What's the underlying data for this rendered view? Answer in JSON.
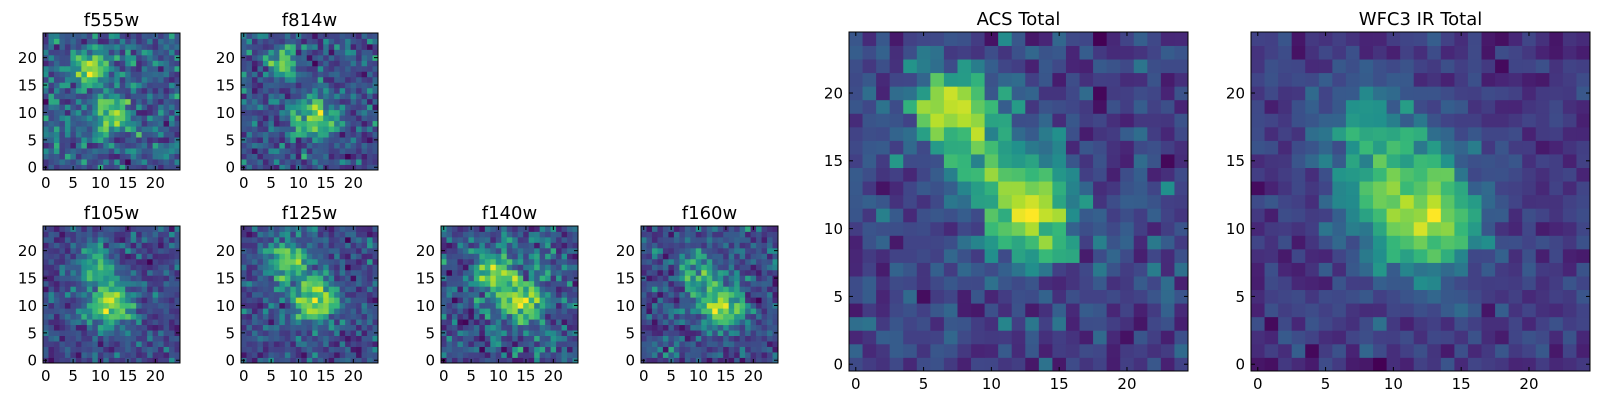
{
  "chart_data": [
    {
      "type": "heatmap",
      "title": "f555w",
      "size": 25,
      "xlim": [
        -0.5,
        24.5
      ],
      "ylim": [
        -0.5,
        24.5
      ],
      "xticks": [
        0,
        5,
        10,
        15,
        20
      ],
      "yticks": [
        0,
        5,
        10,
        15,
        20
      ],
      "xtick_labels": [
        "0",
        "5",
        "10",
        "15",
        "20"
      ],
      "ytick_labels": [
        "0",
        "5",
        "10",
        "15",
        "20"
      ],
      "sources": [
        {
          "x": 8,
          "y": 18,
          "amp": 0.6,
          "sigma": 2.2
        },
        {
          "x": 12,
          "y": 10,
          "amp": 0.45,
          "sigma": 2.4
        }
      ],
      "noise": 0.28,
      "seed": 11
    },
    {
      "type": "heatmap",
      "title": "f814w",
      "size": 25,
      "xlim": [
        -0.5,
        24.5
      ],
      "ylim": [
        -0.5,
        24.5
      ],
      "xticks": [
        0,
        5,
        10,
        15,
        20
      ],
      "yticks": [
        0,
        5,
        10,
        15,
        20
      ],
      "xtick_labels": [
        "0",
        "5",
        "10",
        "15",
        "20"
      ],
      "ytick_labels": [
        "0",
        "5",
        "10",
        "15",
        "20"
      ],
      "sources": [
        {
          "x": 7,
          "y": 19,
          "amp": 0.45,
          "sigma": 2.0
        },
        {
          "x": 13,
          "y": 9,
          "amp": 0.6,
          "sigma": 2.5
        }
      ],
      "noise": 0.28,
      "seed": 23
    },
    {
      "type": "heatmap",
      "title": "f105w",
      "size": 25,
      "xlim": [
        -0.5,
        24.5
      ],
      "ylim": [
        -0.5,
        24.5
      ],
      "xticks": [
        0,
        5,
        10,
        15,
        20
      ],
      "yticks": [
        0,
        5,
        10,
        15,
        20
      ],
      "xtick_labels": [
        "0",
        "5",
        "10",
        "15",
        "20"
      ],
      "ytick_labels": [
        "0",
        "5",
        "10",
        "15",
        "20"
      ],
      "sources": [
        {
          "x": 9,
          "y": 17,
          "amp": 0.45,
          "sigma": 2.6
        },
        {
          "x": 12,
          "y": 10,
          "amp": 0.65,
          "sigma": 2.8
        }
      ],
      "noise": 0.24,
      "seed": 37
    },
    {
      "type": "heatmap",
      "title": "f125w",
      "size": 25,
      "xlim": [
        -0.5,
        24.5
      ],
      "ylim": [
        -0.5,
        24.5
      ],
      "xticks": [
        0,
        5,
        10,
        15,
        20
      ],
      "yticks": [
        0,
        5,
        10,
        15,
        20
      ],
      "xtick_labels": [
        "0",
        "5",
        "10",
        "15",
        "20"
      ],
      "ytick_labels": [
        "0",
        "5",
        "10",
        "15",
        "20"
      ],
      "sources": [
        {
          "x": 8,
          "y": 18,
          "amp": 0.45,
          "sigma": 2.6
        },
        {
          "x": 13,
          "y": 11,
          "amp": 0.6,
          "sigma": 2.8
        }
      ],
      "noise": 0.22,
      "seed": 41
    },
    {
      "type": "heatmap",
      "title": "f140w",
      "size": 25,
      "xlim": [
        -0.5,
        24.5
      ],
      "ylim": [
        -0.5,
        24.5
      ],
      "xticks": [
        0,
        5,
        10,
        15,
        20
      ],
      "yticks": [
        0,
        5,
        10,
        15,
        20
      ],
      "xtick_labels": [
        "0",
        "5",
        "10",
        "15",
        "20"
      ],
      "ytick_labels": [
        "0",
        "5",
        "10",
        "15",
        "20"
      ],
      "sources": [
        {
          "x": 9,
          "y": 16,
          "amp": 0.45,
          "sigma": 2.6
        },
        {
          "x": 14,
          "y": 11,
          "amp": 0.6,
          "sigma": 2.6
        }
      ],
      "noise": 0.26,
      "seed": 53
    },
    {
      "type": "heatmap",
      "title": "f160w",
      "size": 25,
      "xlim": [
        -0.5,
        24.5
      ],
      "ylim": [
        -0.5,
        24.5
      ],
      "xticks": [
        0,
        5,
        10,
        15,
        20
      ],
      "yticks": [
        0,
        5,
        10,
        15,
        20
      ],
      "xtick_labels": [
        "0",
        "5",
        "10",
        "15",
        "20"
      ],
      "ytick_labels": [
        "0",
        "5",
        "10",
        "15",
        "20"
      ],
      "sources": [
        {
          "x": 10,
          "y": 16,
          "amp": 0.4,
          "sigma": 2.6
        },
        {
          "x": 14,
          "y": 10,
          "amp": 0.6,
          "sigma": 2.6
        }
      ],
      "noise": 0.24,
      "seed": 67
    },
    {
      "type": "heatmap",
      "title": "ACS Total",
      "size": 25,
      "xlim": [
        -0.5,
        24.5
      ],
      "ylim": [
        -0.5,
        24.5
      ],
      "xticks": [
        0,
        5,
        10,
        15,
        20
      ],
      "yticks": [
        0,
        5,
        10,
        15,
        20
      ],
      "xtick_labels": [
        "0",
        "5",
        "10",
        "15",
        "20"
      ],
      "ytick_labels": [
        "0",
        "5",
        "10",
        "15",
        "20"
      ],
      "sources": [
        {
          "x": 7,
          "y": 19,
          "amp": 0.65,
          "sigma": 2.0
        },
        {
          "x": 13,
          "y": 11,
          "amp": 0.65,
          "sigma": 2.3
        },
        {
          "x": 10,
          "y": 15,
          "amp": 0.3,
          "sigma": 2.5
        }
      ],
      "noise": 0.2,
      "seed": 79
    },
    {
      "type": "heatmap",
      "title": "WFC3 IR Total",
      "size": 25,
      "xlim": [
        -0.5,
        24.5
      ],
      "ylim": [
        -0.5,
        24.5
      ],
      "xticks": [
        0,
        5,
        10,
        15,
        20
      ],
      "yticks": [
        0,
        5,
        10,
        15,
        20
      ],
      "xtick_labels": [
        "0",
        "5",
        "10",
        "15",
        "20"
      ],
      "ytick_labels": [
        "0",
        "5",
        "10",
        "15",
        "20"
      ],
      "sources": [
        {
          "x": 12,
          "y": 11,
          "amp": 0.75,
          "sigma": 3.2
        },
        {
          "x": 8,
          "y": 17,
          "amp": 0.35,
          "sigma": 2.8
        }
      ],
      "noise": 0.16,
      "seed": 97
    }
  ],
  "colors": {
    "colormap": "viridis",
    "axis_frame": "#000000"
  }
}
